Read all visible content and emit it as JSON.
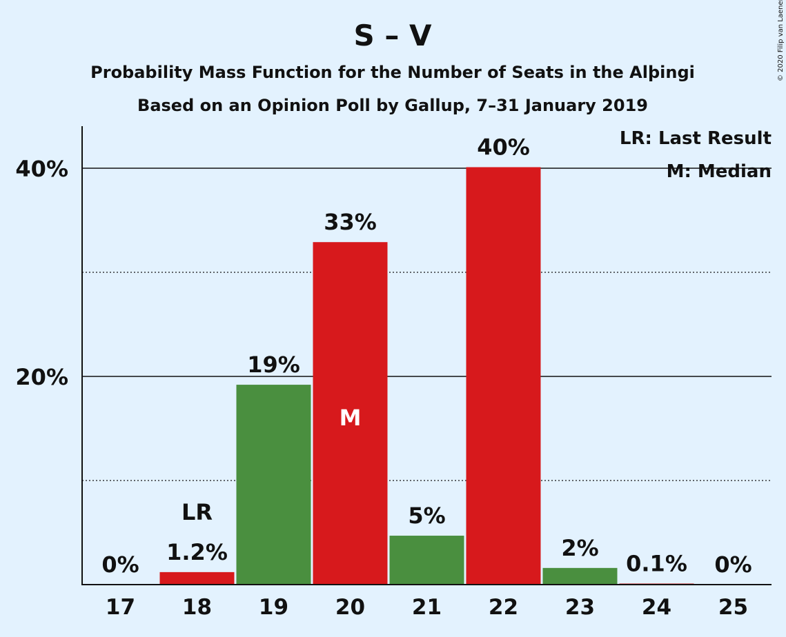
{
  "chart_data": {
    "type": "bar",
    "title": "S – V",
    "subtitle": "Probability Mass Function for the Number of Seats in the Alþingi",
    "subtitle2": "Based on an Opinion Poll by Gallup, 7–31 January 2019",
    "copyright": "© 2020 Filip van Laenen",
    "categories": [
      "17",
      "18",
      "19",
      "20",
      "21",
      "22",
      "23",
      "24",
      "25"
    ],
    "values": [
      0,
      1.2,
      19.2,
      32.9,
      4.7,
      40.1,
      1.6,
      0.1,
      0
    ],
    "value_labels": [
      "0%",
      "1.2%",
      "19%",
      "33%",
      "5%",
      "40%",
      "2%",
      "0.1%",
      "0%"
    ],
    "bar_colors": [
      "#d7191c",
      "#d7191c",
      "#4a8f3f",
      "#d7191c",
      "#4a8f3f",
      "#d7191c",
      "#4a8f3f",
      "#d7191c",
      "#d7191c"
    ],
    "ylim": [
      0,
      44
    ],
    "yticks": [
      {
        "value": 20,
        "label": "20%"
      },
      {
        "value": 40,
        "label": "40%"
      }
    ],
    "minor_gridlines": [
      10,
      30
    ],
    "last_result": {
      "category": "18",
      "label": "LR"
    },
    "median": {
      "category": "20",
      "label": "M"
    },
    "legend": {
      "placement": "top-right",
      "items": [
        "LR: Last Result",
        "M: Median"
      ]
    },
    "colors": {
      "red": "#d7191c",
      "green": "#4a8f3f",
      "background": "#e3f2fe"
    }
  }
}
